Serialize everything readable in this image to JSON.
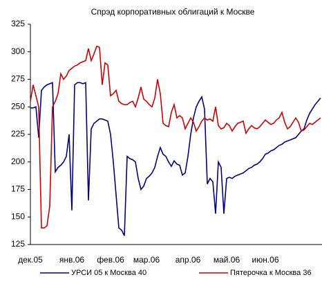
{
  "chart_data": {
    "type": "line",
    "title": "Спрэд корпоративных облигаций к Москве",
    "categories": [
      "дек.05",
      null,
      null,
      null,
      null,
      null,
      null,
      null,
      null,
      null,
      null,
      null,
      null,
      null,
      null,
      "янв.06",
      null,
      null,
      null,
      null,
      null,
      null,
      null,
      null,
      null,
      null,
      null,
      null,
      null,
      "фев.06",
      null,
      null,
      null,
      null,
      null,
      null,
      null,
      null,
      null,
      null,
      null,
      null,
      "мар.06",
      null,
      null,
      null,
      null,
      null,
      null,
      null,
      null,
      null,
      null,
      null,
      null,
      null,
      null,
      "апр.06",
      null,
      null,
      null,
      null,
      null,
      null,
      null,
      null,
      null,
      null,
      null,
      null,
      null,
      "май.06",
      null,
      null,
      null,
      null,
      null,
      null,
      null,
      null,
      null,
      null,
      null,
      null,
      null,
      "июн.06",
      null,
      null,
      null,
      null,
      null,
      null,
      null,
      null,
      null,
      null,
      null,
      null,
      null,
      null,
      null,
      null,
      null,
      null,
      null,
      null
    ],
    "series": [
      {
        "name": "УРСИ 05 к Москва 40",
        "color": "#000080",
        "values": [
          249,
          249,
          250,
          222,
          265,
          268,
          270,
          271,
          272,
          191,
          195,
          197,
          200,
          205,
          225,
          156,
          270,
          272,
          272,
          271,
          272,
          165,
          230,
          235,
          237,
          239,
          239,
          238,
          237,
          225,
          200,
          170,
          140,
          138,
          133,
          205,
          203,
          202,
          200,
          185,
          175,
          178,
          185,
          187,
          190,
          195,
          205,
          213,
          207,
          205,
          200,
          196,
          201,
          198,
          197,
          188,
          190,
          205,
          225,
          240,
          250,
          255,
          259,
          248,
          180,
          185,
          182,
          153,
          200,
          195,
          153,
          185,
          186,
          185,
          187,
          188,
          189,
          190,
          192,
          194,
          195,
          197,
          198,
          200,
          203,
          207,
          208,
          210,
          211,
          213,
          215,
          216,
          218,
          219,
          220,
          221,
          222,
          225,
          228,
          230,
          238,
          244,
          248,
          252,
          255,
          258
        ]
      },
      {
        "name": "Пятерочка к Москва 36",
        "color": "#cc0000",
        "values": [
          255,
          270,
          260,
          250,
          140,
          140,
          142,
          160,
          250,
          255,
          262,
          280,
          275,
          278,
          283,
          285,
          287,
          288,
          290,
          291,
          292,
          303,
          292,
          298,
          305,
          304,
          270,
          290,
          288,
          260,
          262,
          265,
          255,
          253,
          252,
          252,
          254,
          255,
          250,
          258,
          268,
          257,
          255,
          252,
          250,
          258,
          275,
          262,
          235,
          233,
          232,
          245,
          252,
          240,
          242,
          240,
          230,
          235,
          240,
          236,
          228,
          232,
          237,
          240,
          238,
          239,
          237,
          250,
          233,
          230,
          231,
          235,
          233,
          228,
          232,
          235,
          236,
          237,
          226,
          230,
          233,
          231,
          230,
          232,
          235,
          238,
          236,
          234,
          235,
          238,
          240,
          245,
          236,
          230,
          232,
          236,
          240,
          236,
          228,
          229,
          232,
          235,
          234,
          236,
          238,
          240
        ]
      }
    ],
    "ylim": [
      125,
      325
    ],
    "yticks": [
      125,
      150,
      175,
      200,
      225,
      250,
      275,
      300,
      325
    ],
    "legend": "bottom"
  }
}
